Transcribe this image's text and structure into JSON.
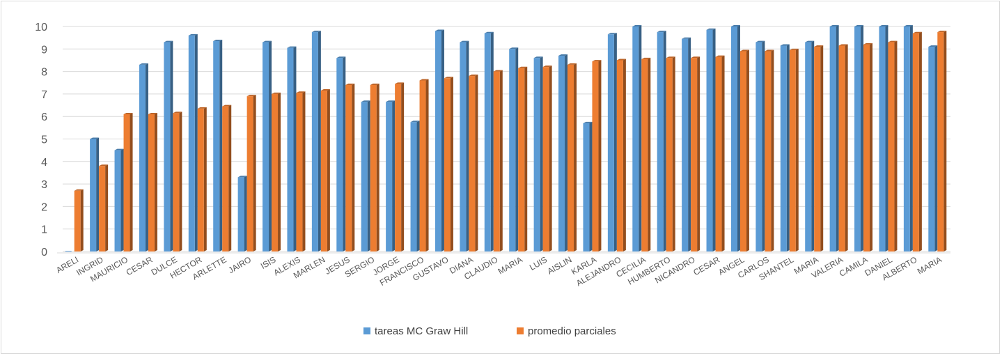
{
  "chart_data": {
    "type": "bar",
    "title": "",
    "xlabel": "",
    "ylabel": "",
    "ylim": [
      0,
      10
    ],
    "yticks": [
      0,
      1,
      2,
      3,
      4,
      5,
      6,
      7,
      8,
      9,
      10
    ],
    "grid": true,
    "legend_position": "bottom",
    "categories": [
      "ARELI",
      "INGRID",
      "MAURICIO",
      "CESAR",
      "DULCE",
      "HECTOR",
      "ARLETTE",
      "JAIRO",
      "ISIS",
      "ALEXIS",
      "MARLEN",
      "JESUS",
      "SERGIO",
      "JORGE",
      "FRANCISCO",
      "GUSTAVO",
      "DIANA",
      "CLAUDIO",
      "MARIA",
      "LUIS",
      "AISLIN",
      "KARLA",
      "ALEJANDRO",
      "CECILIA",
      "HUMBERTO",
      "NICANDRO",
      "CESAR",
      "ANGEL",
      "CARLOS",
      "SHANTEL",
      "MARIA",
      "VALERIA",
      "CAMILA",
      "DANIEL",
      "ALBERTO",
      "MARIA"
    ],
    "series": [
      {
        "name": "tareas MC Graw Hill",
        "color": "#5B9BD5",
        "values": [
          0,
          5.0,
          4.5,
          8.3,
          9.3,
          9.6,
          9.35,
          3.3,
          9.3,
          9.05,
          9.75,
          8.6,
          6.65,
          6.65,
          5.75,
          9.8,
          9.3,
          9.7,
          9.0,
          8.6,
          8.7,
          5.7,
          9.65,
          10,
          9.75,
          9.45,
          9.85,
          10,
          9.3,
          9.15,
          9.3,
          10,
          10,
          10,
          10,
          9.1
        ]
      },
      {
        "name": "promedio parciales",
        "color": "#ED7D31",
        "values": [
          2.7,
          3.8,
          6.1,
          6.1,
          6.15,
          6.35,
          6.45,
          6.9,
          7.0,
          7.05,
          7.15,
          7.4,
          7.4,
          7.45,
          7.6,
          7.7,
          7.8,
          8.0,
          8.15,
          8.2,
          8.3,
          8.45,
          8.5,
          8.55,
          8.6,
          8.6,
          8.65,
          8.9,
          8.9,
          8.95,
          9.1,
          9.15,
          9.2,
          9.3,
          9.7,
          9.75
        ]
      }
    ]
  }
}
